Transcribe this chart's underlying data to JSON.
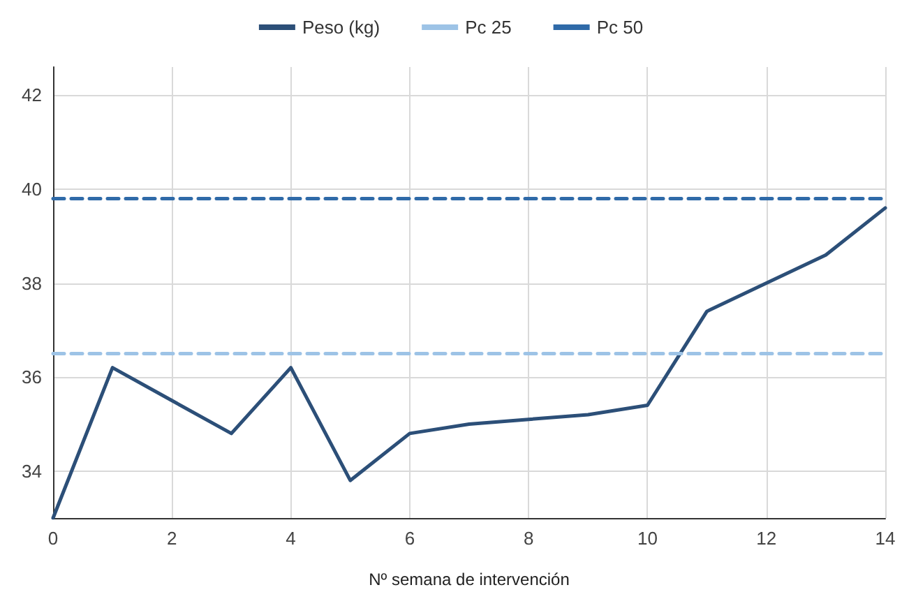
{
  "chart_data": {
    "type": "line",
    "xlabel": "Nº semana de intervención",
    "x": [
      0,
      1,
      2,
      3,
      4,
      5,
      6,
      7,
      8,
      9,
      10,
      11,
      12,
      13,
      14
    ],
    "series": [
      {
        "name": "Peso (kg)",
        "color": "#2c4f78",
        "values": [
          33,
          36.2,
          35.5,
          34.8,
          36.2,
          33.8,
          34.8,
          35.0,
          35.1,
          35.2,
          35.4,
          37.4,
          38.0,
          38.6,
          39.6
        ],
        "line_style": "solid"
      },
      {
        "name": "Pc 25",
        "color": "#9dc3e6",
        "values": [
          36.5,
          36.5,
          36.5,
          36.5,
          36.5,
          36.5,
          36.5,
          36.5,
          36.5,
          36.5,
          36.5,
          36.5,
          36.5,
          36.5,
          36.5
        ],
        "line_style": "dashed"
      },
      {
        "name": "Pc 50",
        "color": "#2f6aa8",
        "values": [
          39.8,
          39.8,
          39.8,
          39.8,
          39.8,
          39.8,
          39.8,
          39.8,
          39.8,
          39.8,
          39.8,
          39.8,
          39.8,
          39.8,
          39.8
        ],
        "line_style": "dashed"
      }
    ],
    "xlim": [
      0,
      14
    ],
    "xticks": [
      0,
      2,
      4,
      6,
      8,
      10,
      12,
      14
    ],
    "ylim": [
      33,
      42.6
    ],
    "yticks": [
      34,
      36,
      38,
      40,
      42
    ],
    "grid": true,
    "legend": "top",
    "marker": "none"
  }
}
